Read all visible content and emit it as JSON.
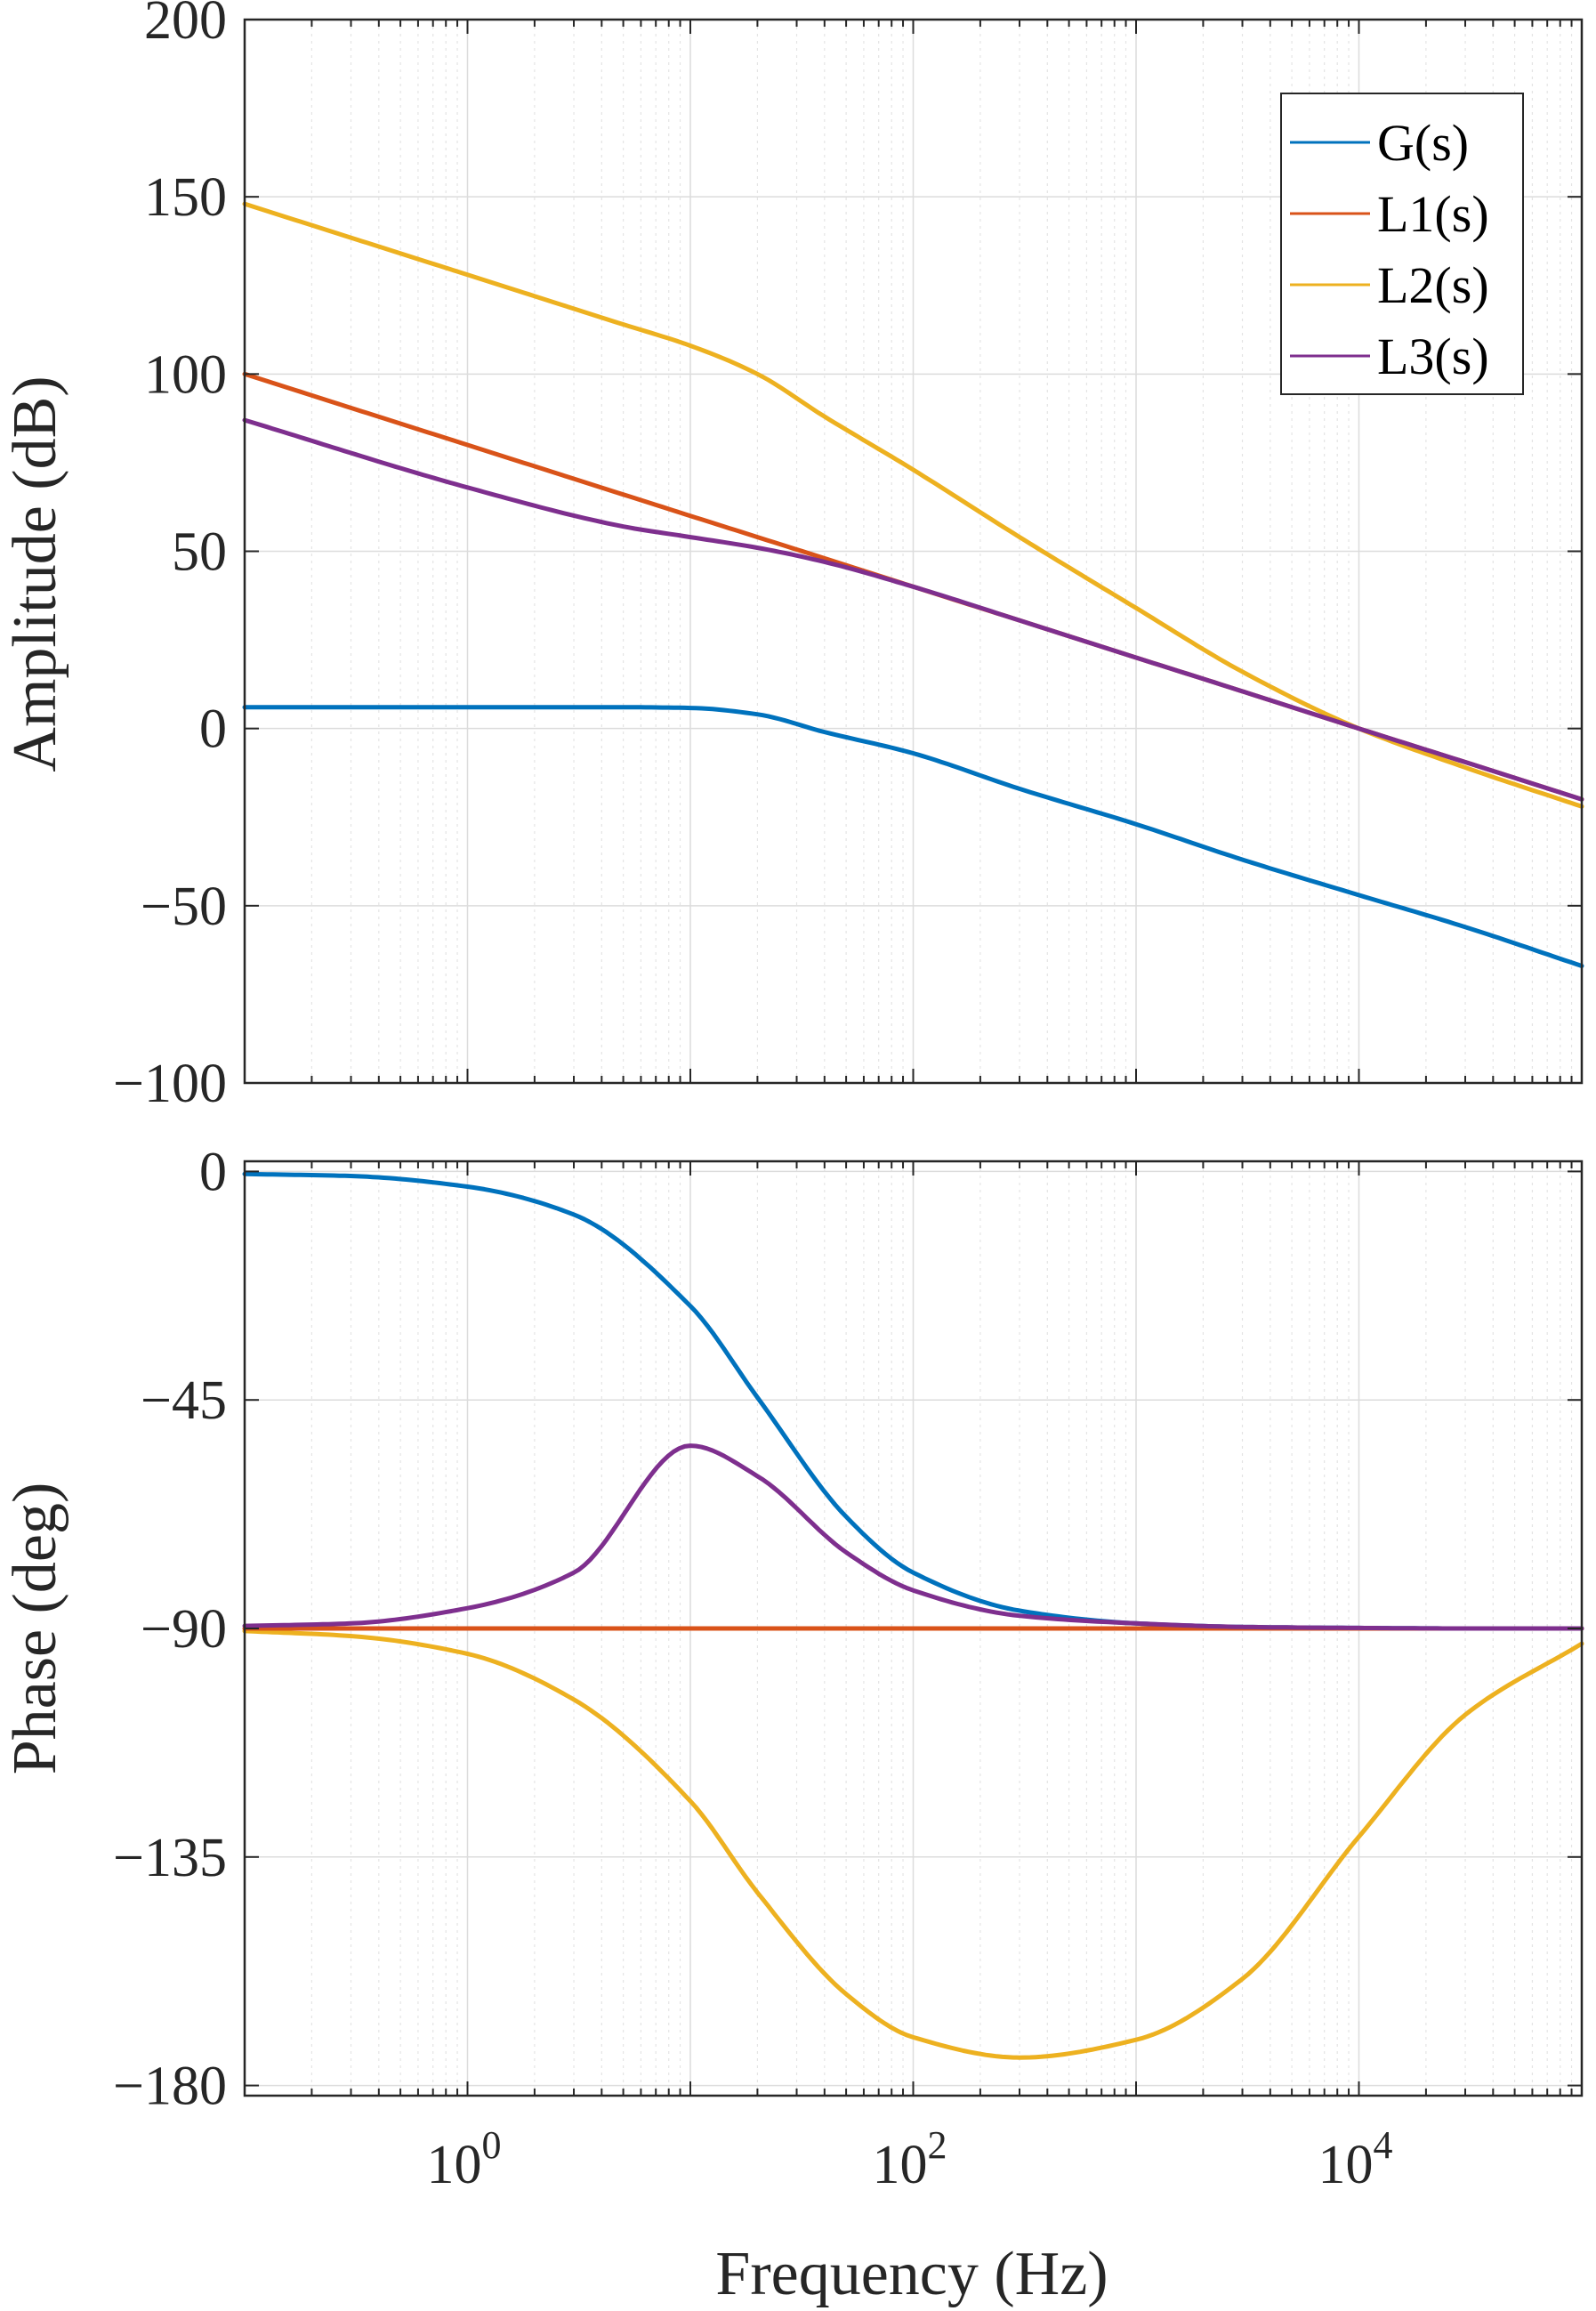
{
  "chart_data": [
    {
      "id": "amplitude",
      "type": "line",
      "title": "",
      "xlabel": "",
      "ylabel": "Amplitude (dB)",
      "x_scale": "log",
      "xlim": [
        0.1,
        100000
      ],
      "ylim": [
        -100,
        200
      ],
      "yticks": [
        "200",
        "150",
        "100",
        "50",
        "0",
        "-50",
        "-100"
      ],
      "ytick_values": [
        200,
        150,
        100,
        50,
        0,
        -50,
        -100
      ],
      "grid": true,
      "legend": "top-right",
      "x": [
        0.1,
        1,
        5,
        10,
        20,
        40,
        100,
        300,
        1000,
        3000,
        10000,
        30000,
        100000
      ],
      "series": [
        {
          "name": "G(s)",
          "color": "#0072BD",
          "values": [
            6,
            6,
            6,
            5.8,
            4,
            -1,
            -7,
            -17,
            -27,
            -37,
            -47,
            -56,
            -67
          ]
        },
        {
          "name": "L1(s)",
          "color": "#D95319",
          "values": [
            100,
            80,
            66,
            60,
            54,
            48,
            40,
            30.5,
            20,
            10.5,
            0,
            -9.5,
            -20
          ]
        },
        {
          "name": "L2(s)",
          "color": "#EDB120",
          "values": [
            148,
            128,
            114,
            108,
            100,
            88,
            73,
            54,
            34,
            16,
            0,
            -11,
            -22
          ]
        },
        {
          "name": "L3(s)",
          "color": "#7E2F8E",
          "values": [
            87,
            68,
            57,
            54,
            51,
            47,
            40,
            30.5,
            20,
            10.5,
            0,
            -9.5,
            -20
          ]
        }
      ]
    },
    {
      "id": "phase",
      "type": "line",
      "title": "",
      "xlabel": "Frequency (Hz)",
      "ylabel": "Phase (deg)",
      "x_scale": "log",
      "xlim": [
        0.1,
        100000
      ],
      "ylim": [
        -182,
        2
      ],
      "yticks": [
        "0",
        "-45",
        "-90",
        "-135",
        "-180"
      ],
      "ytick_values": [
        0,
        -45,
        -90,
        -135,
        -180
      ],
      "xticks": [
        1,
        100,
        10000
      ],
      "xtick_bases": [
        "10",
        "10",
        "10"
      ],
      "xtick_exponents": [
        "0",
        "2",
        "4"
      ],
      "grid": true,
      "x": [
        0.1,
        0.3,
        1,
        3,
        10,
        20,
        50,
        100,
        300,
        1000,
        3000,
        10000,
        30000,
        100000
      ],
      "series": [
        {
          "name": "G(s)",
          "color": "#0072BD",
          "values": [
            -0.5,
            -0.9,
            -3,
            -8.5,
            -26.5,
            -44.5,
            -68,
            -79,
            -86.5,
            -89,
            -89.7,
            -89.9,
            -90,
            -90
          ]
        },
        {
          "name": "L1(s)",
          "color": "#D95319",
          "values": [
            -90,
            -90,
            -90,
            -90,
            -90,
            -90,
            -90,
            -90,
            -90,
            -90,
            -90,
            -90,
            -90,
            -90
          ]
        },
        {
          "name": "L2(s)",
          "color": "#EDB120",
          "values": [
            -90.5,
            -91.5,
            -95,
            -104,
            -124,
            -142,
            -162,
            -170.5,
            -174.5,
            -171,
            -159,
            -131,
            -107,
            -93
          ]
        },
        {
          "name": "L3(s)",
          "color": "#7E2F8E",
          "values": [
            -89.5,
            -89,
            -86,
            -79,
            -54,
            -60,
            -75,
            -82.5,
            -87.5,
            -89,
            -89.7,
            -89.9,
            -90,
            -90
          ]
        }
      ]
    }
  ]
}
